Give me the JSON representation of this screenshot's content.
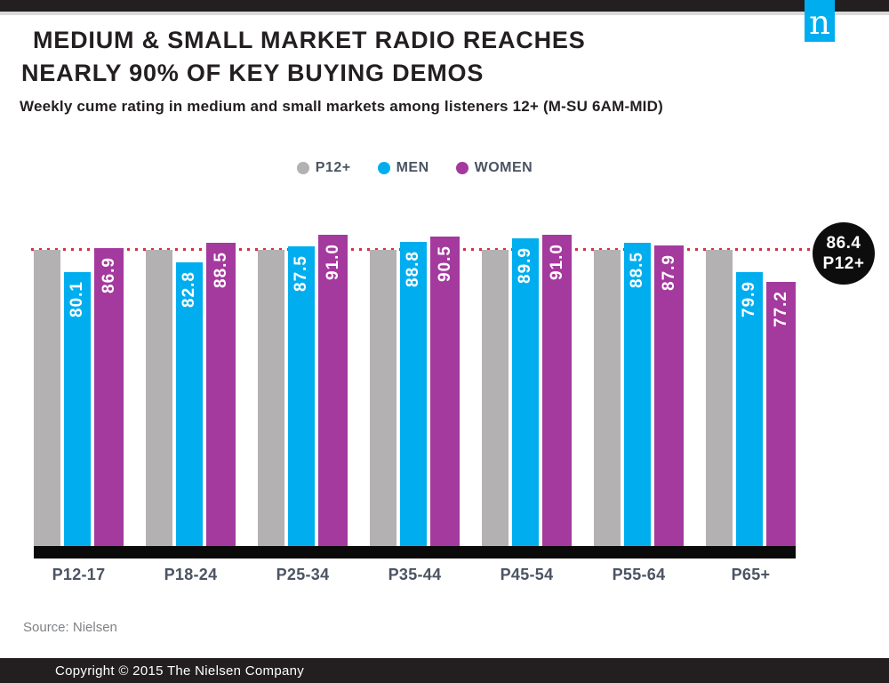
{
  "logo": {
    "letter": "n",
    "color": "#00aeef"
  },
  "header": {
    "title_line1": "MEDIUM & SMALL MARKET RADIO REACHES",
    "title_line2": "NEARLY 90% OF KEY BUYING DEMOS",
    "subtitle": "Weekly cume rating in medium and small markets among listeners 12+ (M-SU 6AM-MID)"
  },
  "chart_data": {
    "type": "bar",
    "title": "Weekly cume rating in medium and small markets among listeners 12+ (M-SU 6AM-MID)",
    "categories": [
      "P12-17",
      "P18-24",
      "P25-34",
      "P35-44",
      "P45-54",
      "P55-64",
      "P65+"
    ],
    "series": [
      {
        "name": "P12+",
        "color": "#b3b1b2",
        "show_labels": false,
        "values": [
          86.4,
          86.4,
          86.4,
          86.4,
          86.4,
          86.4,
          86.4
        ]
      },
      {
        "name": "MEN",
        "color": "#00aeef",
        "show_labels": true,
        "values": [
          80.1,
          82.8,
          87.5,
          88.8,
          89.9,
          88.5,
          79.9
        ]
      },
      {
        "name": "WOMEN",
        "color": "#a43a9d",
        "show_labels": true,
        "values": [
          86.9,
          88.5,
          91.0,
          90.5,
          91.0,
          87.9,
          77.2
        ]
      }
    ],
    "reference_line": {
      "value": 86.4,
      "label_value": "86.4",
      "label_name": "P12+",
      "color": "#dc2a48"
    },
    "ylim": [
      0,
      95
    ],
    "legend_position": "top-center",
    "grid": false,
    "value_labels": "inside-top, rotated 90deg, white"
  },
  "footer": {
    "source": "Source: Nielsen",
    "copyright": "Copyright © 2015 The Nielsen Company"
  }
}
